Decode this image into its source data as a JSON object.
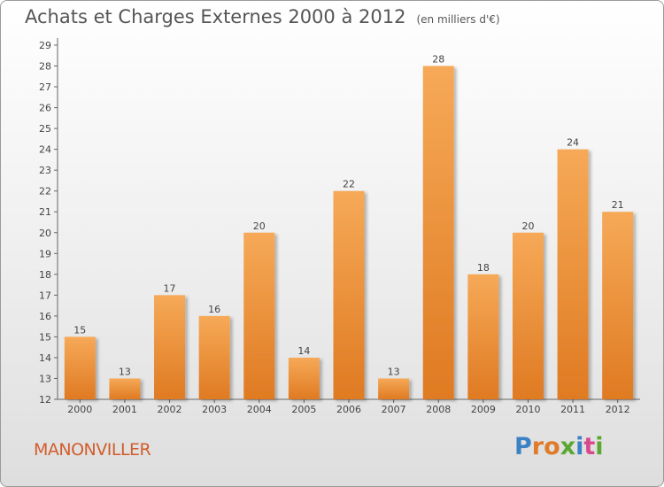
{
  "header": {
    "title": "Achats et Charges Externes 2000 à 2012",
    "subtitle": "(en milliers d'€)"
  },
  "footer": {
    "place": "MANONVILLER",
    "logo_letters": [
      "P",
      "r",
      "o",
      "x",
      "i",
      "t",
      "i"
    ],
    "logo_colors": [
      "#3b82c4",
      "#e07b2a",
      "#e07b2a",
      "#5aa832",
      "#3b82c4",
      "#d94a8c",
      "#5aa832"
    ]
  },
  "chart_data": {
    "type": "bar",
    "title": "Achats et Charges Externes 2000 à 2012",
    "categories": [
      "2000",
      "2001",
      "2002",
      "2003",
      "2004",
      "2005",
      "2006",
      "2007",
      "2008",
      "2009",
      "2010",
      "2011",
      "2012"
    ],
    "values": [
      15,
      13,
      17,
      16,
      20,
      14,
      22,
      13,
      28,
      18,
      20,
      24,
      21
    ],
    "ylim": [
      12,
      29
    ],
    "yticks": [
      12,
      13,
      14,
      15,
      16,
      17,
      18,
      19,
      20,
      21,
      22,
      23,
      24,
      25,
      26,
      27,
      28,
      29
    ],
    "grid": false,
    "colors": {
      "bar_light": "#f5a85a",
      "bar_dark": "#e07b22",
      "axis": "#555555"
    }
  }
}
